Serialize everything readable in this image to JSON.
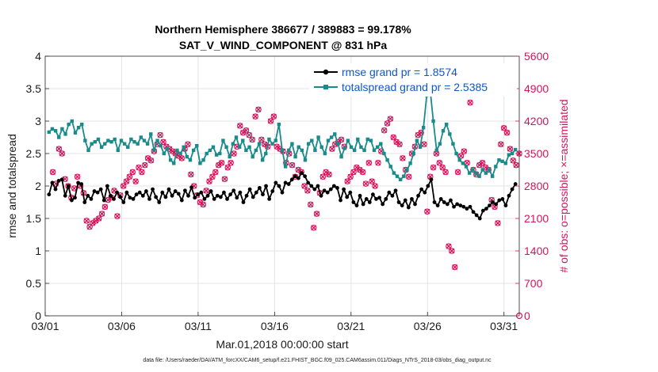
{
  "chart_data": {
    "type": "line",
    "title": "Northern Hemisphere 386677 / 389883 = 99.178%",
    "subtitle": "SAT_V_WIND_COMPONENT @ 831 hPa",
    "xlabel": "Mar.01,2018 00:00:00 start",
    "ylabel": "rmse and totalspread",
    "ylabel_right": "# of obs: o=possible; ×=assimilated",
    "footnote": "data file: /Users/raeder/DAI/ATM_forcXX/CAM6_setup/f.e21.FHIST_BGC.f09_025.CAM6assim.011/Diags_NTrS_2018-03/obs_diag_output.nc",
    "x_unit": "day of March 2018 (1 = 03/01 00Z)",
    "xlim": [
      1,
      32
    ],
    "ylim": [
      0,
      4
    ],
    "ylim_right": [
      0,
      5600
    ],
    "xticks": [
      1,
      6,
      11,
      16,
      21,
      26,
      31
    ],
    "xtick_labels": [
      "03/01",
      "03/06",
      "03/11",
      "03/16",
      "03/21",
      "03/26",
      "03/31"
    ],
    "yticks": [
      0,
      0.5,
      1,
      1.5,
      2,
      2.5,
      3,
      3.5,
      4
    ],
    "ytick_labels": [
      "0",
      "0.5",
      "1",
      "1.5",
      "2",
      "2.5",
      "3",
      "3.5",
      "4"
    ],
    "yticks_right": [
      0,
      700,
      1400,
      2100,
      2800,
      3500,
      4200,
      4900,
      5600
    ],
    "ytick_labels_right": [
      "0",
      "700",
      "1400",
      "2100",
      "2800",
      "3500",
      "4200",
      "4900",
      "5600"
    ],
    "grid": true,
    "legend_position": "top-right",
    "series": [
      {
        "name": "rmse grand pr = 1.8574",
        "color": "#000000",
        "axis": "left",
        "values": [
          1.87,
          2.05,
          1.95,
          2.08,
          2.1,
          1.85,
          2.0,
          1.78,
          1.82,
          2.05,
          2.03,
          1.75,
          1.85,
          1.8,
          1.92,
          1.9,
          1.95,
          1.78,
          2.0,
          1.85,
          1.8,
          1.9,
          1.83,
          1.75,
          1.9,
          1.82,
          1.8,
          1.87,
          1.9,
          1.85,
          1.92,
          1.8,
          1.95,
          1.83,
          1.75,
          1.9,
          1.83,
          1.95,
          1.85,
          1.92,
          1.88,
          1.78,
          1.93,
          1.85,
          1.98,
          1.82,
          1.87,
          1.9,
          1.8,
          1.85,
          1.92,
          1.8,
          1.85,
          1.83,
          1.9,
          1.8,
          1.87,
          1.93,
          1.82,
          1.9,
          1.75,
          1.85,
          1.95,
          1.83,
          1.9,
          1.97,
          1.87,
          2.0,
          1.8,
          1.92,
          2.05,
          2.0,
          1.9,
          2.05,
          2.03,
          2.1,
          2.15,
          2.12,
          2.2,
          2.15,
          2.05,
          2.0,
          1.95,
          2.0,
          1.85,
          1.93,
          1.9,
          1.95,
          2.0,
          1.97,
          1.78,
          1.95,
          1.83,
          1.9,
          1.75,
          1.7,
          1.85,
          1.72,
          1.8,
          1.75,
          1.87,
          1.8,
          1.82,
          1.72,
          1.8,
          1.9,
          1.85,
          1.93,
          1.75,
          1.7,
          1.78,
          1.67,
          1.8,
          1.72,
          1.85,
          1.95,
          1.9,
          2.0,
          2.1,
          1.75,
          1.7,
          1.8,
          1.75,
          1.72,
          1.78,
          1.68,
          1.72,
          1.7,
          1.68,
          1.65,
          1.68,
          1.6,
          1.55,
          1.5,
          1.62,
          1.65,
          1.7,
          1.75,
          1.72,
          1.78,
          1.8,
          1.7,
          1.85,
          1.95,
          2.03
        ]
      },
      {
        "name": "totalspread grand pr = 2.5385",
        "color": "#1a8b8b",
        "axis": "left",
        "values": [
          2.83,
          2.88,
          2.85,
          2.75,
          2.88,
          2.8,
          2.95,
          3.0,
          2.82,
          2.9,
          2.95,
          2.7,
          2.55,
          2.65,
          2.68,
          2.72,
          2.6,
          2.65,
          2.7,
          2.68,
          2.72,
          2.55,
          2.7,
          2.65,
          2.6,
          2.72,
          2.68,
          2.65,
          2.75,
          2.7,
          2.65,
          2.8,
          2.55,
          2.7,
          2.62,
          2.5,
          2.58,
          2.4,
          2.35,
          2.55,
          2.5,
          2.6,
          2.45,
          2.4,
          2.55,
          2.62,
          2.35,
          2.4,
          2.5,
          2.55,
          2.6,
          2.48,
          2.5,
          2.7,
          2.6,
          2.45,
          2.65,
          2.75,
          2.6,
          2.7,
          2.55,
          2.6,
          2.45,
          2.55,
          2.65,
          2.4,
          2.5,
          2.72,
          2.65,
          2.7,
          2.95,
          2.55,
          2.3,
          2.55,
          2.65,
          2.45,
          2.6,
          2.55,
          2.4,
          2.65,
          2.7,
          2.55,
          2.75,
          2.6,
          2.5,
          2.7,
          2.75,
          2.8,
          2.65,
          2.45,
          2.58,
          2.7,
          2.6,
          2.55,
          2.72,
          2.6,
          2.55,
          2.72,
          2.7,
          2.55,
          2.6,
          2.65,
          2.5,
          2.4,
          2.3,
          2.2,
          2.15,
          2.1,
          2.15,
          2.25,
          2.35,
          2.5,
          2.7,
          2.6,
          2.9,
          3.4,
          3.5,
          3.0,
          2.55,
          2.65,
          2.85,
          2.95,
          2.8,
          2.65,
          2.5,
          2.4,
          2.35,
          2.3,
          2.2,
          2.25,
          2.2,
          2.15,
          2.25,
          2.2,
          2.25,
          2.15,
          2.3,
          2.4,
          2.38,
          2.35,
          2.48,
          2.5,
          2.56
        ]
      }
    ],
    "obs_series": [
      {
        "name": "possible",
        "marker": "circle",
        "color": "#d4145a",
        "axis": "right",
        "values": [
          3100,
          2850,
          3600,
          3500,
          2950,
          2800,
          2550,
          2750,
          3000,
          2800,
          2650,
          2050,
          1920,
          2000,
          2050,
          2100,
          2200,
          2350,
          2500,
          2550,
          2700,
          2150,
          2600,
          2800,
          2900,
          3000,
          3100,
          2900,
          3200,
          3100,
          3250,
          3400,
          3350,
          3550,
          3700,
          3900,
          3750,
          3650,
          3600,
          3550,
          3500,
          3450,
          3400,
          3600,
          3700,
          3050,
          2800,
          2600,
          2450,
          2400,
          2700,
          2900,
          3000,
          3100,
          3250,
          3300,
          2950,
          3200,
          3300,
          3500,
          3650,
          4100,
          3950,
          4000,
          3900,
          3800,
          4300,
          4450,
          3800,
          3700,
          3650,
          4200,
          4300,
          3650,
          3600,
          3550,
          3300,
          3500,
          3250,
          3000,
          3150,
          3100,
          2800,
          2700,
          2400,
          1900,
          2200,
          2650,
          3000,
          3100,
          3050,
          3600,
          3700,
          3750,
          3800,
          3650,
          2900,
          3000,
          3100,
          3200,
          3150,
          3100,
          2850,
          3300,
          2900,
          2800,
          3300,
          3550,
          4000,
          4150,
          4250,
          3850,
          3750,
          3700,
          3400,
          3150,
          3000,
          3500,
          3650,
          3900,
          3950,
          3700,
          2250,
          3000,
          3200,
          3500,
          3300,
          3200,
          3100,
          1500,
          1400,
          1050,
          3100,
          3450,
          3550,
          3300,
          4600,
          3150,
          3050,
          3250,
          3300,
          3200,
          3150,
          2500,
          2350,
          2000,
          3700,
          4050,
          3950,
          3600,
          3350,
          3250,
          3500
        ]
      },
      {
        "name": "assimilated",
        "marker": "x",
        "color": "#d4145a",
        "axis": "right",
        "values": [
          3100,
          2850,
          3600,
          3500,
          2950,
          2800,
          2550,
          2750,
          3000,
          2800,
          2650,
          2050,
          1920,
          2000,
          2050,
          2100,
          2200,
          2350,
          2500,
          2550,
          2700,
          2150,
          2600,
          2800,
          2900,
          3000,
          3100,
          2900,
          3200,
          3100,
          3250,
          3400,
          3350,
          3550,
          3700,
          3900,
          3750,
          3650,
          3600,
          3550,
          3500,
          3450,
          3400,
          3600,
          3700,
          3050,
          2800,
          2600,
          2450,
          2400,
          2700,
          2900,
          3000,
          3100,
          3250,
          3300,
          2950,
          3200,
          3300,
          3500,
          3650,
          4100,
          3950,
          4000,
          3900,
          3800,
          4300,
          4450,
          3800,
          3700,
          3650,
          4200,
          4300,
          3650,
          3600,
          3550,
          3300,
          3500,
          3250,
          3000,
          3150,
          3100,
          2800,
          2700,
          2400,
          1900,
          2200,
          2650,
          3000,
          3100,
          3050,
          3600,
          3700,
          3750,
          3800,
          3650,
          2900,
          3000,
          3100,
          3200,
          3150,
          3100,
          2850,
          3300,
          2900,
          2800,
          3300,
          3550,
          4000,
          4150,
          4250,
          3850,
          3750,
          3700,
          3400,
          3150,
          3000,
          3500,
          3650,
          3900,
          3950,
          3700,
          2250,
          3000,
          3200,
          3500,
          3300,
          3200,
          3100,
          1500,
          1400,
          1050,
          3100,
          3450,
          3550,
          3300,
          4600,
          3150,
          3050,
          3250,
          3300,
          3200,
          3150,
          2500,
          2350,
          2000,
          3700,
          4050,
          3950,
          3600,
          3350,
          3250,
          3500
        ]
      }
    ]
  }
}
